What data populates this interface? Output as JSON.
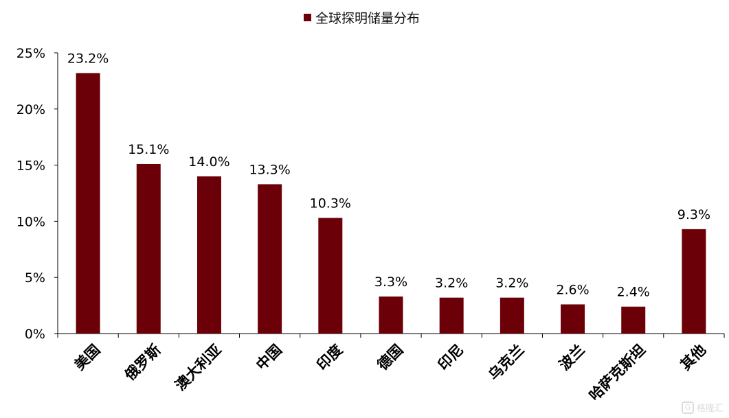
{
  "chart_data": {
    "type": "bar",
    "title": "",
    "xlabel": "",
    "ylabel": "",
    "ylim": [
      0,
      25
    ],
    "yticks": [
      0,
      5,
      10,
      15,
      20,
      25
    ],
    "ytick_labels": [
      "0%",
      "5%",
      "10%",
      "15%",
      "20%",
      "25%"
    ],
    "grid": false,
    "legend_position": "top-center",
    "categories": [
      "美国",
      "俄罗斯",
      "澳大利亚",
      "中国",
      "印度",
      "德国",
      "印尼",
      "乌克兰",
      "波兰",
      "哈萨克斯坦",
      "其他"
    ],
    "series": [
      {
        "name": "全球探明储量分布",
        "color": "#6B0008",
        "values": [
          23.2,
          15.1,
          14.0,
          13.3,
          10.3,
          3.3,
          3.2,
          3.2,
          2.6,
          2.4,
          9.3
        ],
        "labels": [
          "23.2%",
          "15.1%",
          "14.0%",
          "13.3%",
          "10.3%",
          "3.3%",
          "3.2%",
          "3.2%",
          "2.6%",
          "2.4%",
          "9.3%"
        ]
      }
    ]
  },
  "watermark": {
    "text": "格隆汇",
    "logo": "G"
  }
}
